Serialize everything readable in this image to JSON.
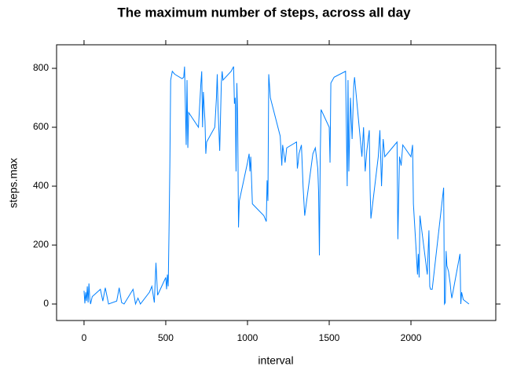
{
  "chart_data": {
    "type": "line",
    "title": "The maximum number of steps, across all day",
    "x_label": "interval",
    "y_label": "steps.max",
    "color": "#0080ff",
    "x": [
      0,
      5,
      10,
      15,
      20,
      25,
      30,
      35,
      40,
      50,
      100,
      115,
      130,
      150,
      200,
      215,
      230,
      245,
      300,
      315,
      330,
      345,
      400,
      415,
      430,
      440,
      450,
      500,
      505,
      510,
      515,
      520,
      525,
      530,
      540,
      555,
      600,
      610,
      615,
      625,
      630,
      635,
      640,
      700,
      715,
      720,
      725,
      730,
      740,
      745,
      750,
      800,
      810,
      815,
      820,
      830,
      840,
      845,
      850,
      900,
      915,
      920,
      925,
      930,
      935,
      940,
      945,
      950,
      1000,
      1010,
      1015,
      1020,
      1030,
      1100,
      1115,
      1120,
      1125,
      1130,
      1140,
      1200,
      1210,
      1215,
      1230,
      1240,
      1300,
      1305,
      1310,
      1315,
      1330,
      1340,
      1350,
      1400,
      1415,
      1430,
      1435,
      1440,
      1445,
      1450,
      1500,
      1505,
      1510,
      1530,
      1600,
      1610,
      1615,
      1620,
      1630,
      1640,
      1650,
      1655,
      1700,
      1710,
      1720,
      1730,
      1745,
      1750,
      1755,
      1800,
      1810,
      1820,
      1830,
      1840,
      1900,
      1915,
      1920,
      1930,
      1940,
      1950,
      2000,
      2010,
      2015,
      2030,
      2040,
      2045,
      2050,
      2055,
      2100,
      2110,
      2115,
      2120,
      2130,
      2200,
      2205,
      2210,
      2215,
      2220,
      2230,
      2240,
      2245,
      2250,
      2300,
      2305,
      2310,
      2320,
      2355
    ],
    "values": [
      45,
      2,
      40,
      10,
      60,
      5,
      70,
      20,
      0,
      25,
      50,
      10,
      55,
      0,
      10,
      55,
      5,
      0,
      50,
      0,
      20,
      0,
      40,
      60,
      5,
      140,
      30,
      90,
      50,
      100,
      60,
      250,
      470,
      760,
      790,
      780,
      765,
      770,
      806,
      540,
      760,
      530,
      650,
      600,
      750,
      790,
      600,
      720,
      620,
      510,
      550,
      600,
      700,
      780,
      660,
      520,
      750,
      790,
      760,
      790,
      806,
      680,
      700,
      450,
      750,
      620,
      260,
      350,
      480,
      510,
      450,
      500,
      340,
      300,
      280,
      420,
      350,
      780,
      700,
      570,
      470,
      540,
      480,
      530,
      550,
      460,
      480,
      510,
      540,
      400,
      300,
      510,
      530,
      460,
      380,
      165,
      500,
      660,
      600,
      480,
      750,
      770,
      790,
      400,
      760,
      450,
      700,
      560,
      740,
      770,
      500,
      600,
      450,
      520,
      590,
      390,
      290,
      500,
      590,
      400,
      560,
      500,
      540,
      550,
      220,
      500,
      470,
      540,
      500,
      540,
      340,
      200,
      100,
      170,
      90,
      300,
      100,
      250,
      60,
      50,
      50,
      395,
      0,
      5,
      180,
      130,
      110,
      70,
      40,
      20,
      170,
      0,
      40,
      15,
      0
    ],
    "xlim": [
      -168,
      2519
    ],
    "ylim": [
      -56,
      880
    ],
    "xticks": [
      0,
      500,
      1000,
      1500,
      2000
    ],
    "yticks": [
      0,
      200,
      400,
      600,
      800
    ]
  }
}
